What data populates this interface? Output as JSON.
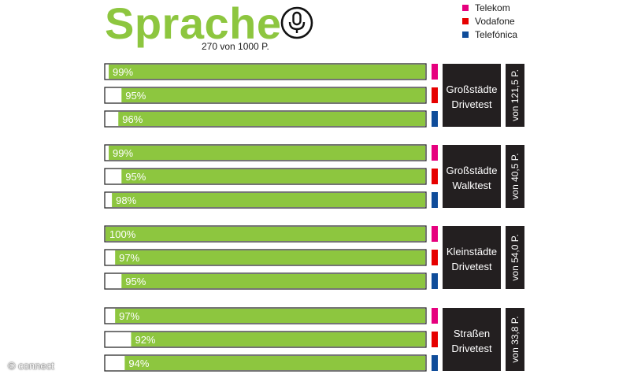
{
  "title": "Sprache",
  "subtitle": "270 von 1000 P.",
  "credit": "© connect",
  "icons": {
    "mic": "microphone-icon"
  },
  "colors": {
    "bar_fill": "#8dc63f",
    "bar_border": "#2b2b2b",
    "category_box": "#231f20",
    "Telekom": "#e6007e",
    "Vodafone": "#e60000",
    "Telefónica": "#0f4c9a"
  },
  "chart_data": {
    "type": "bar",
    "orientation": "horizontal",
    "xlim": [
      0,
      100
    ],
    "series": [
      {
        "name": "Telekom",
        "color": "#e6007e"
      },
      {
        "name": "Vodafone",
        "color": "#e60000"
      },
      {
        "name": "Telefónica",
        "color": "#0f4c9a"
      }
    ],
    "groups": [
      {
        "label_lines": [
          "Großstädte",
          "Drivetest"
        ],
        "points": "von 121,5 P.",
        "values": [
          99,
          95,
          96
        ],
        "labels": [
          "99%",
          "95%",
          "96%"
        ]
      },
      {
        "label_lines": [
          "Großstädte",
          "Walktest"
        ],
        "points": "von 40,5 P.",
        "values": [
          99,
          95,
          98
        ],
        "labels": [
          "99%",
          "95%",
          "98%"
        ]
      },
      {
        "label_lines": [
          "Kleinstädte",
          "Drivetest"
        ],
        "points": "von 54,0 P.",
        "values": [
          100,
          97,
          95
        ],
        "labels": [
          "100%",
          "97%",
          "95%"
        ]
      },
      {
        "label_lines": [
          "Straßen",
          "Drivetest"
        ],
        "points": "von 33,8 P.",
        "values": [
          97,
          92,
          94
        ],
        "labels": [
          "97%",
          "92%",
          "94%"
        ]
      }
    ],
    "legend_position": "top-right"
  }
}
